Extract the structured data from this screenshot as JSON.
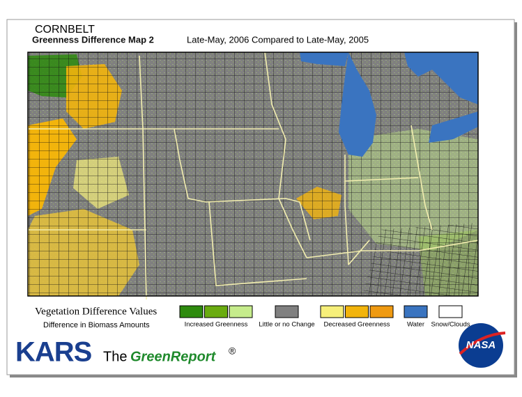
{
  "header": {
    "region": "CORNBELT",
    "title": "Greenness Difference Map 2",
    "subtitle": "Late-May, 2006 Compared to Late-May, 2005"
  },
  "legend": {
    "title": "Vegetation Difference Values",
    "subtitle": "Difference in Biomass Amounts",
    "groups": [
      {
        "label": "Increased Greenness",
        "colors": [
          "#2e8b0e",
          "#6aac10",
          "#c6ec8c"
        ]
      },
      {
        "label": "Little or no Change",
        "colors": [
          "#808080"
        ]
      },
      {
        "label": "Decreased Greenness",
        "colors": [
          "#f6ef7a",
          "#f2b40c",
          "#ef9a12"
        ]
      },
      {
        "label": "Water",
        "colors": [
          "#3a74c0"
        ]
      },
      {
        "label": "Snow/Clouds",
        "colors": [
          "#ffffff"
        ]
      }
    ]
  },
  "branding": {
    "kars": "KARS",
    "the": "The",
    "green_report": "GreenReport",
    "registered": "®",
    "nasa": "NASA"
  }
}
